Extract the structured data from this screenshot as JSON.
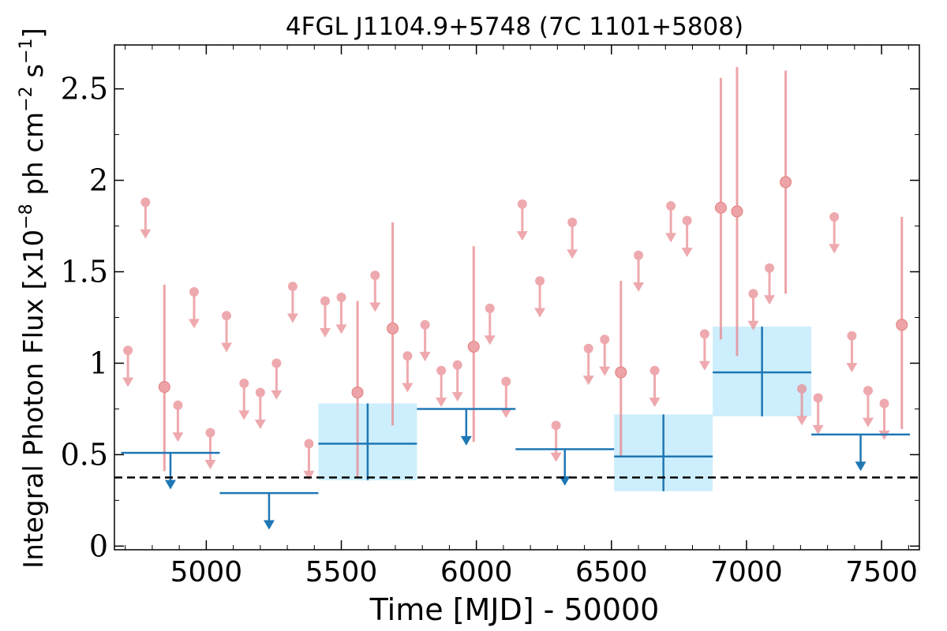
{
  "chart_data": {
    "type": "scatter",
    "title": "4FGL J1104.9+5748 (7C 1101+5808)",
    "xlabel": "Time [MJD] - 50000",
    "ylabel_parts": [
      "Integral Photon Flux [x10",
      "−8",
      " ph cm",
      "−2",
      " s",
      "−1",
      "]"
    ],
    "xlim": [
      4660,
      7640
    ],
    "ylim": [
      -0.02,
      2.74
    ],
    "xticks": [
      5000,
      5500,
      6000,
      6500,
      7000,
      7500
    ],
    "yticks": [
      0,
      0.5,
      1,
      1.5,
      2,
      2.5
    ],
    "ytick_labels": [
      "0",
      "0.5",
      "1",
      "1.5",
      "2",
      "2.5"
    ],
    "reference_level": 0.375,
    "colors": {
      "short_bin": "#e8868c",
      "long_bin": "#1f77b4",
      "long_bin_band": "#cdeefc",
      "reference_line": "#000000"
    },
    "short_bin_detections": [
      {
        "x": 4845,
        "y": 0.87,
        "lo": 0.41,
        "hi": 1.43
      },
      {
        "x": 5560,
        "y": 0.84,
        "lo": 0.37,
        "hi": 1.34
      },
      {
        "x": 5690,
        "y": 1.19,
        "lo": 0.66,
        "hi": 1.77
      },
      {
        "x": 5990,
        "y": 1.09,
        "lo": 0.57,
        "hi": 1.64
      },
      {
        "x": 6535,
        "y": 0.95,
        "lo": 0.49,
        "hi": 1.45
      },
      {
        "x": 6905,
        "y": 1.85,
        "lo": 1.13,
        "hi": 2.56
      },
      {
        "x": 6965,
        "y": 1.83,
        "lo": 1.04,
        "hi": 2.62
      },
      {
        "x": 7145,
        "y": 1.99,
        "lo": 1.38,
        "hi": 2.6
      },
      {
        "x": 7575,
        "y": 1.21,
        "lo": 0.64,
        "hi": 1.8
      }
    ],
    "short_bin_upper_limits": [
      {
        "x": 4710,
        "y": 1.07
      },
      {
        "x": 4775,
        "y": 1.88
      },
      {
        "x": 4895,
        "y": 0.77
      },
      {
        "x": 4955,
        "y": 1.39
      },
      {
        "x": 5015,
        "y": 0.62
      },
      {
        "x": 5075,
        "y": 1.26
      },
      {
        "x": 5140,
        "y": 0.89
      },
      {
        "x": 5200,
        "y": 0.84
      },
      {
        "x": 5260,
        "y": 1.0
      },
      {
        "x": 5320,
        "y": 1.42
      },
      {
        "x": 5380,
        "y": 0.56
      },
      {
        "x": 5440,
        "y": 1.34
      },
      {
        "x": 5500,
        "y": 1.36
      },
      {
        "x": 5625,
        "y": 1.48
      },
      {
        "x": 5745,
        "y": 1.04
      },
      {
        "x": 5810,
        "y": 1.21
      },
      {
        "x": 5870,
        "y": 0.96
      },
      {
        "x": 5930,
        "y": 0.99
      },
      {
        "x": 6050,
        "y": 1.3
      },
      {
        "x": 6110,
        "y": 0.9
      },
      {
        "x": 6170,
        "y": 1.87
      },
      {
        "x": 6235,
        "y": 1.45
      },
      {
        "x": 6295,
        "y": 0.66
      },
      {
        "x": 6355,
        "y": 1.77
      },
      {
        "x": 6415,
        "y": 1.08
      },
      {
        "x": 6475,
        "y": 1.13
      },
      {
        "x": 6600,
        "y": 1.59
      },
      {
        "x": 6660,
        "y": 0.96
      },
      {
        "x": 6720,
        "y": 1.86
      },
      {
        "x": 6780,
        "y": 1.78
      },
      {
        "x": 6845,
        "y": 1.16
      },
      {
        "x": 7025,
        "y": 1.38
      },
      {
        "x": 7085,
        "y": 1.52
      },
      {
        "x": 7205,
        "y": 0.86
      },
      {
        "x": 7265,
        "y": 0.81
      },
      {
        "x": 7325,
        "y": 1.8
      },
      {
        "x": 7390,
        "y": 1.15
      },
      {
        "x": 7450,
        "y": 0.85
      },
      {
        "x": 7510,
        "y": 0.78
      }
    ],
    "long_bin_detections": [
      {
        "x0": 5415,
        "x1": 5780,
        "y": 0.56,
        "lo": 0.36,
        "hi": 0.78
      },
      {
        "x0": 6510,
        "x1": 6875,
        "y": 0.49,
        "lo": 0.3,
        "hi": 0.72
      },
      {
        "x0": 6875,
        "x1": 7240,
        "y": 0.95,
        "lo": 0.71,
        "hi": 1.2
      }
    ],
    "long_bin_upper_limits": [
      {
        "x0": 4685,
        "x1": 5050,
        "y": 0.51
      },
      {
        "x0": 5050,
        "x1": 5415,
        "y": 0.29
      },
      {
        "x0": 5780,
        "x1": 6145,
        "y": 0.75
      },
      {
        "x0": 6145,
        "x1": 6510,
        "y": 0.53
      },
      {
        "x0": 7240,
        "x1": 7605,
        "y": 0.61
      }
    ]
  }
}
